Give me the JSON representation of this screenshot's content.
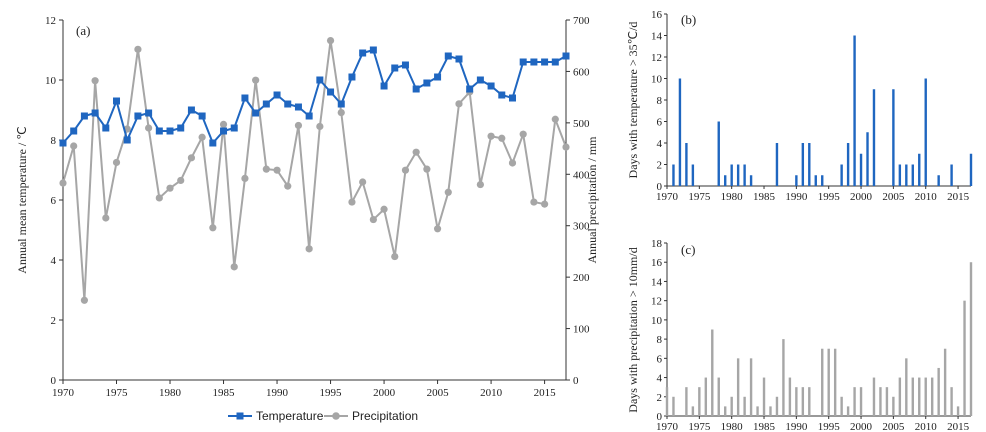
{
  "colors": {
    "temperature": "#1f66c0",
    "precipitation": "#a6a6a6",
    "axis": "#333333"
  },
  "chart_data": [
    {
      "type": "line",
      "panel_label": "(a)",
      "x": [
        1970,
        1971,
        1972,
        1973,
        1974,
        1975,
        1976,
        1977,
        1978,
        1979,
        1980,
        1981,
        1982,
        1983,
        1984,
        1985,
        1986,
        1987,
        1988,
        1989,
        1990,
        1991,
        1992,
        1993,
        1994,
        1995,
        1996,
        1997,
        1998,
        1999,
        2000,
        2001,
        2002,
        2003,
        2004,
        2005,
        2006,
        2007,
        2008,
        2009,
        2010,
        2011,
        2012,
        2013,
        2014,
        2015,
        2016,
        2017
      ],
      "xticks": [
        "1970",
        "1975",
        "1980",
        "1985",
        "1990",
        "1995",
        "2000",
        "2005",
        "2010",
        "2015"
      ],
      "xlim": [
        1970,
        2017
      ],
      "ylabel_left": "Annual mean temperature / ℃",
      "ylim_left": [
        0,
        12
      ],
      "yticks_left": [
        "0",
        "2",
        "4",
        "6",
        "8",
        "10",
        "12"
      ],
      "ylabel_right": "Annual precipitation / mm",
      "ylim_right": [
        0,
        700
      ],
      "yticks_right": [
        "0",
        "100",
        "200",
        "300",
        "400",
        "500",
        "600",
        "700"
      ],
      "legend_position": "bottom",
      "series": [
        {
          "name": "Temperature",
          "axis": "left",
          "marker": "square",
          "values": [
            7.9,
            8.3,
            8.8,
            8.9,
            8.4,
            9.3,
            8.0,
            8.8,
            8.9,
            8.3,
            8.3,
            8.4,
            9.0,
            8.8,
            7.9,
            8.3,
            8.4,
            9.4,
            8.9,
            9.2,
            9.5,
            9.2,
            9.1,
            8.8,
            10.0,
            9.6,
            9.2,
            10.1,
            10.9,
            11.0,
            9.8,
            10.4,
            10.5,
            9.7,
            9.9,
            10.1,
            10.8,
            10.7,
            9.7,
            10.0,
            9.8,
            9.5,
            9.4,
            10.6,
            10.6,
            10.6,
            10.6,
            10.8
          ]
        },
        {
          "name": "Precipitation",
          "axis": "right",
          "marker": "circle",
          "values": [
            383,
            455,
            155,
            582,
            315,
            423,
            488,
            643,
            490,
            354,
            373,
            388,
            432,
            472,
            296,
            497,
            220,
            392,
            583,
            410,
            408,
            377,
            495,
            255,
            493,
            660,
            520,
            346,
            385,
            312,
            332,
            240,
            408,
            443,
            410,
            294,
            365,
            537,
            560,
            380,
            474,
            470,
            422,
            478,
            346,
            342,
            507,
            453
          ]
        }
      ]
    },
    {
      "type": "bar",
      "panel_label": "(b)",
      "ylabel": "Days with temperature > 35℃/d",
      "ylim": [
        0,
        16
      ],
      "yticks": [
        "0",
        "2",
        "4",
        "6",
        "8",
        "10",
        "12",
        "14",
        "16"
      ],
      "xlim": [
        1970,
        2017
      ],
      "xticks": [
        "1970",
        "1975",
        "1980",
        "1985",
        "1990",
        "1995",
        "2000",
        "2005",
        "2010",
        "2015"
      ],
      "x": [
        1971,
        1972,
        1973,
        1974,
        1978,
        1979,
        1980,
        1981,
        1982,
        1983,
        1987,
        1990,
        1991,
        1992,
        1993,
        1994,
        1997,
        1998,
        1999,
        2000,
        2001,
        2002,
        2005,
        2006,
        2007,
        2008,
        2009,
        2010,
        2012,
        2014,
        2017
      ],
      "values": [
        2,
        10,
        4,
        2,
        6,
        1,
        2,
        2,
        2,
        1,
        4,
        1,
        4,
        4,
        1,
        1,
        2,
        4,
        14,
        3,
        5,
        9,
        9,
        2,
        2,
        2,
        3,
        10,
        1,
        2,
        3
      ]
    },
    {
      "type": "bar",
      "panel_label": "(c)",
      "ylabel": "Days with precipitation > 10mm/d",
      "ylim": [
        0,
        18
      ],
      "yticks": [
        "0",
        "2",
        "4",
        "6",
        "8",
        "10",
        "12",
        "14",
        "16",
        "18"
      ],
      "xlim": [
        1970,
        2017
      ],
      "xticks": [
        "1970",
        "1975",
        "1980",
        "1985",
        "1990",
        "1995",
        "2000",
        "2005",
        "2010",
        "2015"
      ],
      "x": [
        1970,
        1971,
        1973,
        1974,
        1975,
        1976,
        1977,
        1978,
        1979,
        1980,
        1981,
        1982,
        1983,
        1984,
        1985,
        1986,
        1987,
        1988,
        1989,
        1990,
        1991,
        1992,
        1994,
        1995,
        1996,
        1997,
        1998,
        1999,
        2000,
        2002,
        2003,
        2004,
        2005,
        2006,
        2007,
        2008,
        2009,
        2010,
        2011,
        2012,
        2013,
        2014,
        2015,
        2016,
        2017
      ],
      "values": [
        3,
        2,
        3,
        1,
        3,
        4,
        9,
        4,
        1,
        2,
        6,
        2,
        6,
        1,
        4,
        1,
        2,
        8,
        4,
        3,
        3,
        3,
        7,
        7,
        7,
        2,
        1,
        3,
        3,
        4,
        3,
        3,
        2,
        4,
        6,
        4,
        4,
        4,
        4,
        5,
        7,
        3,
        1,
        12,
        16
      ]
    }
  ]
}
